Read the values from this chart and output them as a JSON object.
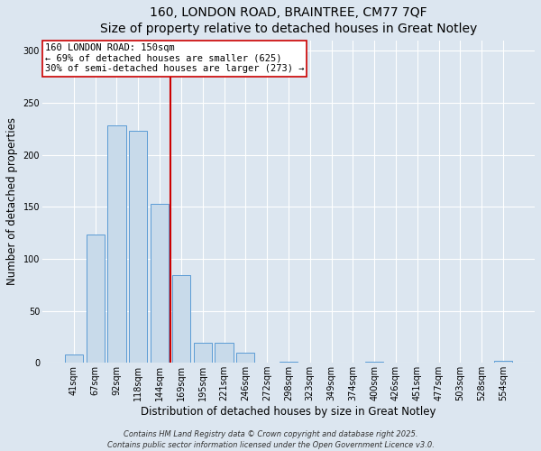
{
  "title_line1": "160, LONDON ROAD, BRAINTREE, CM77 7QF",
  "title_line2": "Size of property relative to detached houses in Great Notley",
  "xlabel": "Distribution of detached houses by size in Great Notley",
  "ylabel": "Number of detached properties",
  "categories": [
    "41sqm",
    "67sqm",
    "92sqm",
    "118sqm",
    "144sqm",
    "169sqm",
    "195sqm",
    "221sqm",
    "246sqm",
    "272sqm",
    "298sqm",
    "323sqm",
    "349sqm",
    "374sqm",
    "400sqm",
    "426sqm",
    "451sqm",
    "477sqm",
    "503sqm",
    "528sqm",
    "554sqm"
  ],
  "values": [
    8,
    123,
    228,
    223,
    153,
    84,
    19,
    19,
    10,
    0,
    1,
    0,
    0,
    0,
    1,
    0,
    0,
    0,
    0,
    0,
    2
  ],
  "bar_color": "#c8daea",
  "bar_edge_color": "#5b9bd5",
  "vline_x": 4.5,
  "vline_color": "#cc0000",
  "annotation_text": "160 LONDON ROAD: 150sqm\n← 69% of detached houses are smaller (625)\n30% of semi-detached houses are larger (273) →",
  "annotation_box_color": "white",
  "annotation_box_edge": "#cc0000",
  "ylim": [
    0,
    310
  ],
  "yticks": [
    0,
    50,
    100,
    150,
    200,
    250,
    300
  ],
  "background_color": "#dce6f0",
  "plot_bg_color": "#dce6f0",
  "footer_line1": "Contains HM Land Registry data © Crown copyright and database right 2025.",
  "footer_line2": "Contains public sector information licensed under the Open Government Licence v3.0.",
  "title_fontsize": 10,
  "axis_label_fontsize": 8.5,
  "tick_fontsize": 7,
  "annotation_fontsize": 7.5,
  "footer_fontsize": 6,
  "grid_color": "white",
  "grid_linewidth": 0.8
}
